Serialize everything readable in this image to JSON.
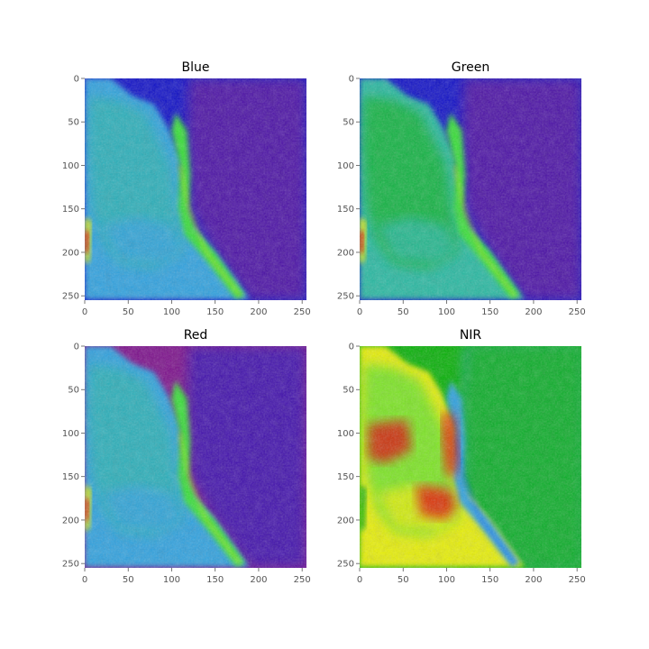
{
  "chart_data": [
    {
      "type": "heatmap",
      "title": "Blue",
      "colormap": "nipy_spectral",
      "image_size": [
        256,
        256
      ],
      "xticks": [
        0,
        50,
        100,
        150,
        200,
        250
      ],
      "yticks": [
        0,
        50,
        100,
        150,
        200,
        250
      ],
      "xlim": [
        0,
        255
      ],
      "ylim": [
        255,
        0
      ],
      "grid": false
    },
    {
      "type": "heatmap",
      "title": "Green",
      "colormap": "nipy_spectral",
      "image_size": [
        256,
        256
      ],
      "xticks": [
        0,
        50,
        100,
        150,
        200,
        250
      ],
      "yticks": [
        0,
        50,
        100,
        150,
        200,
        250
      ],
      "xlim": [
        0,
        255
      ],
      "ylim": [
        255,
        0
      ],
      "grid": false
    },
    {
      "type": "heatmap",
      "title": "Red",
      "colormap": "nipy_spectral",
      "image_size": [
        256,
        256
      ],
      "xticks": [
        0,
        50,
        100,
        150,
        200,
        250
      ],
      "yticks": [
        0,
        50,
        100,
        150,
        200,
        250
      ],
      "xlim": [
        0,
        255
      ],
      "ylim": [
        255,
        0
      ],
      "grid": false
    },
    {
      "type": "heatmap",
      "title": "NIR",
      "colormap": "nipy_spectral",
      "image_size": [
        256,
        256
      ],
      "xticks": [
        0,
        50,
        100,
        150,
        200,
        250
      ],
      "yticks": [
        0,
        50,
        100,
        150,
        200,
        250
      ],
      "xlim": [
        0,
        255
      ],
      "ylim": [
        255,
        0
      ],
      "grid": false
    }
  ],
  "colors": {
    "purple": "#7a0a8a",
    "dark_blue": "#0a0ac8",
    "blue": "#0050ff",
    "light_blue": "#2aa0e0",
    "cyan_green": "#20b8a0",
    "green": "#00b000",
    "bright_green": "#30e030",
    "yellow": "#e8f000",
    "red": "#e00000",
    "tick_color": "#555555"
  }
}
